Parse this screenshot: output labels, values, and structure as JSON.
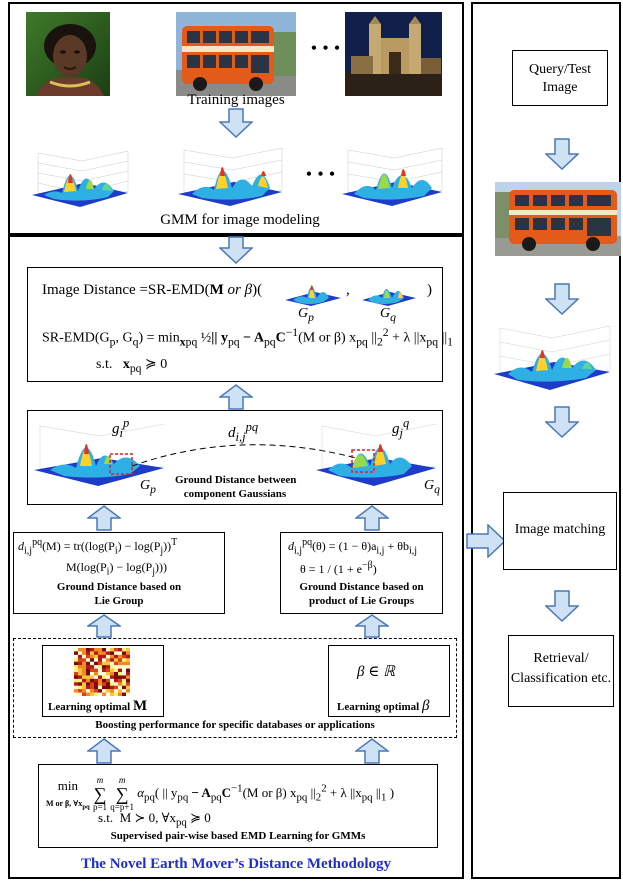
{
  "top_panel": {
    "dots": "• • •",
    "dots2": "• • •",
    "training_caption": "Training images",
    "gmm_caption": "GMM for image modeling"
  },
  "distance_box": {
    "line1_prefix": "Image Distance =SR-EMD(",
    "line1_bold": "M",
    "line1_or": "or",
    "line1_beta": "β",
    "line1_open": ")(",
    "line1_comma": ",",
    "line1_close": ")",
    "gp": "G",
    "gp_sub": "p",
    "gq": "G",
    "gq_sub": "q",
    "line2": "SR-EMD(G",
    "line2_rest": "p",
    "line2_mid": ", G",
    "line2_q": "q",
    "line2_eq": ") = min",
    "line2_min_sub": "x",
    "line2_min_sub2": "pq",
    "line2_frac": "½",
    "line2_body": "|| y",
    "line2_body2": "pq",
    "line2_body3": " − A",
    "line2_body4": "pq",
    "line2_body5": "C",
    "line2_body6": "−1",
    "line2_body7": "(M or β) x",
    "line2_body8": "pq",
    "line2_body9": " ||",
    "line2_body10": "2",
    "line2_body11": "2",
    "line2_body12": " + λ ||x",
    "line2_body13": "pq",
    "line2_body14": " ||",
    "line2_body15": "1",
    "line3_st": "s.t.",
    "line3_x": "x",
    "line3_sub": "pq",
    "line3_ge": "≽ 0"
  },
  "ground_box": {
    "gip": "g",
    "gip_sub": "i",
    "gip_sup": "p",
    "gjq": "g",
    "gjq_sub": "j",
    "gjq_sup": "q",
    "dij": "d",
    "dij_sub": "i,j",
    "dij_sup": "pq",
    "gp": "G",
    "gp_sub": "p",
    "gq": "G",
    "gq_sub": "q",
    "caption1": "Ground Distance between",
    "caption2": "component Gaussians"
  },
  "lie_box": {
    "eq1": "d",
    "eq1_sub": "i,j",
    "eq1_sup": "pq",
    "eq1_rest": "(M) = tr((log(P",
    "eq1_i": "i",
    "eq1_rest2": ") − log(P",
    "eq1_j": "j",
    "eq1_rest3": "))",
    "eq1_T": "T",
    "eq2": "M(log(P",
    "eq2_i": "i",
    "eq2_rest": ") − log(P",
    "eq2_j": "j",
    "eq2_rest2": ")))",
    "caption1": "Ground Distance based on",
    "caption2": "Lie Group"
  },
  "product_box": {
    "eq1": "d",
    "eq1_sub": "i,j",
    "eq1_sup": "pq",
    "eq1_rest": "(θ) = (1 − θ)a",
    "eq1_a_sub": "i,j",
    "eq1_rest2": " + θb",
    "eq1_b_sub": "i,j",
    "eq2": "θ = 1 / (1 + e",
    "eq2_sup": "−β",
    "eq2_end": ")",
    "caption1": "Ground Distance based on",
    "caption2": "product of Lie Groups"
  },
  "learning_m": {
    "label": "Learning optimal",
    "symbol": "M"
  },
  "learning_beta": {
    "expr": "β ∈ ℝ",
    "label": "Learning optimal",
    "symbol": "β"
  },
  "boost_caption": "Boosting performance for specific databases or applications",
  "supervised_box": {
    "min": "min",
    "min_sub": "M or β, ∀x",
    "min_sub2": "pq",
    "sum1_top": "m",
    "sum1_bot": "p=1",
    "sum2_top": "m",
    "sum2_bot": "q=p+1",
    "body": "α",
    "body_sub": "pq",
    "body2": "( || y",
    "body3": "pq",
    "body4": " − A",
    "body5": "pq",
    "body6": "C",
    "body7": "−1",
    "body8": "(M or β) x",
    "body9": "pq",
    "body10": " ||",
    "body11": "2",
    "body12": "2",
    "body13": " + λ ||x",
    "body14": "pq",
    "body15": " ||",
    "body16": "1",
    "body17": " )",
    "st": "s.t.",
    "st_m": "M ≻ 0, ∀x",
    "st_sub": "pq",
    "st_ge": "≽ 0",
    "caption": "Supervised pair-wise based EMD Learning for GMMs"
  },
  "bottom_title": "The Novel Earth Mover’s Distance Methodology",
  "right": {
    "query_line1": "Query/Test",
    "query_line2": "Image",
    "matching": "Image matching",
    "retrieval_line1": "Retrieval/",
    "retrieval_line2": "Classification etc."
  },
  "colors": {
    "arrow_fill": "#cfe2f3",
    "arrow_stroke": "#4a78b8",
    "title_blue": "#1f2fcf",
    "highlight_red": "#e02020",
    "bus_orange": "#e35b1b"
  }
}
